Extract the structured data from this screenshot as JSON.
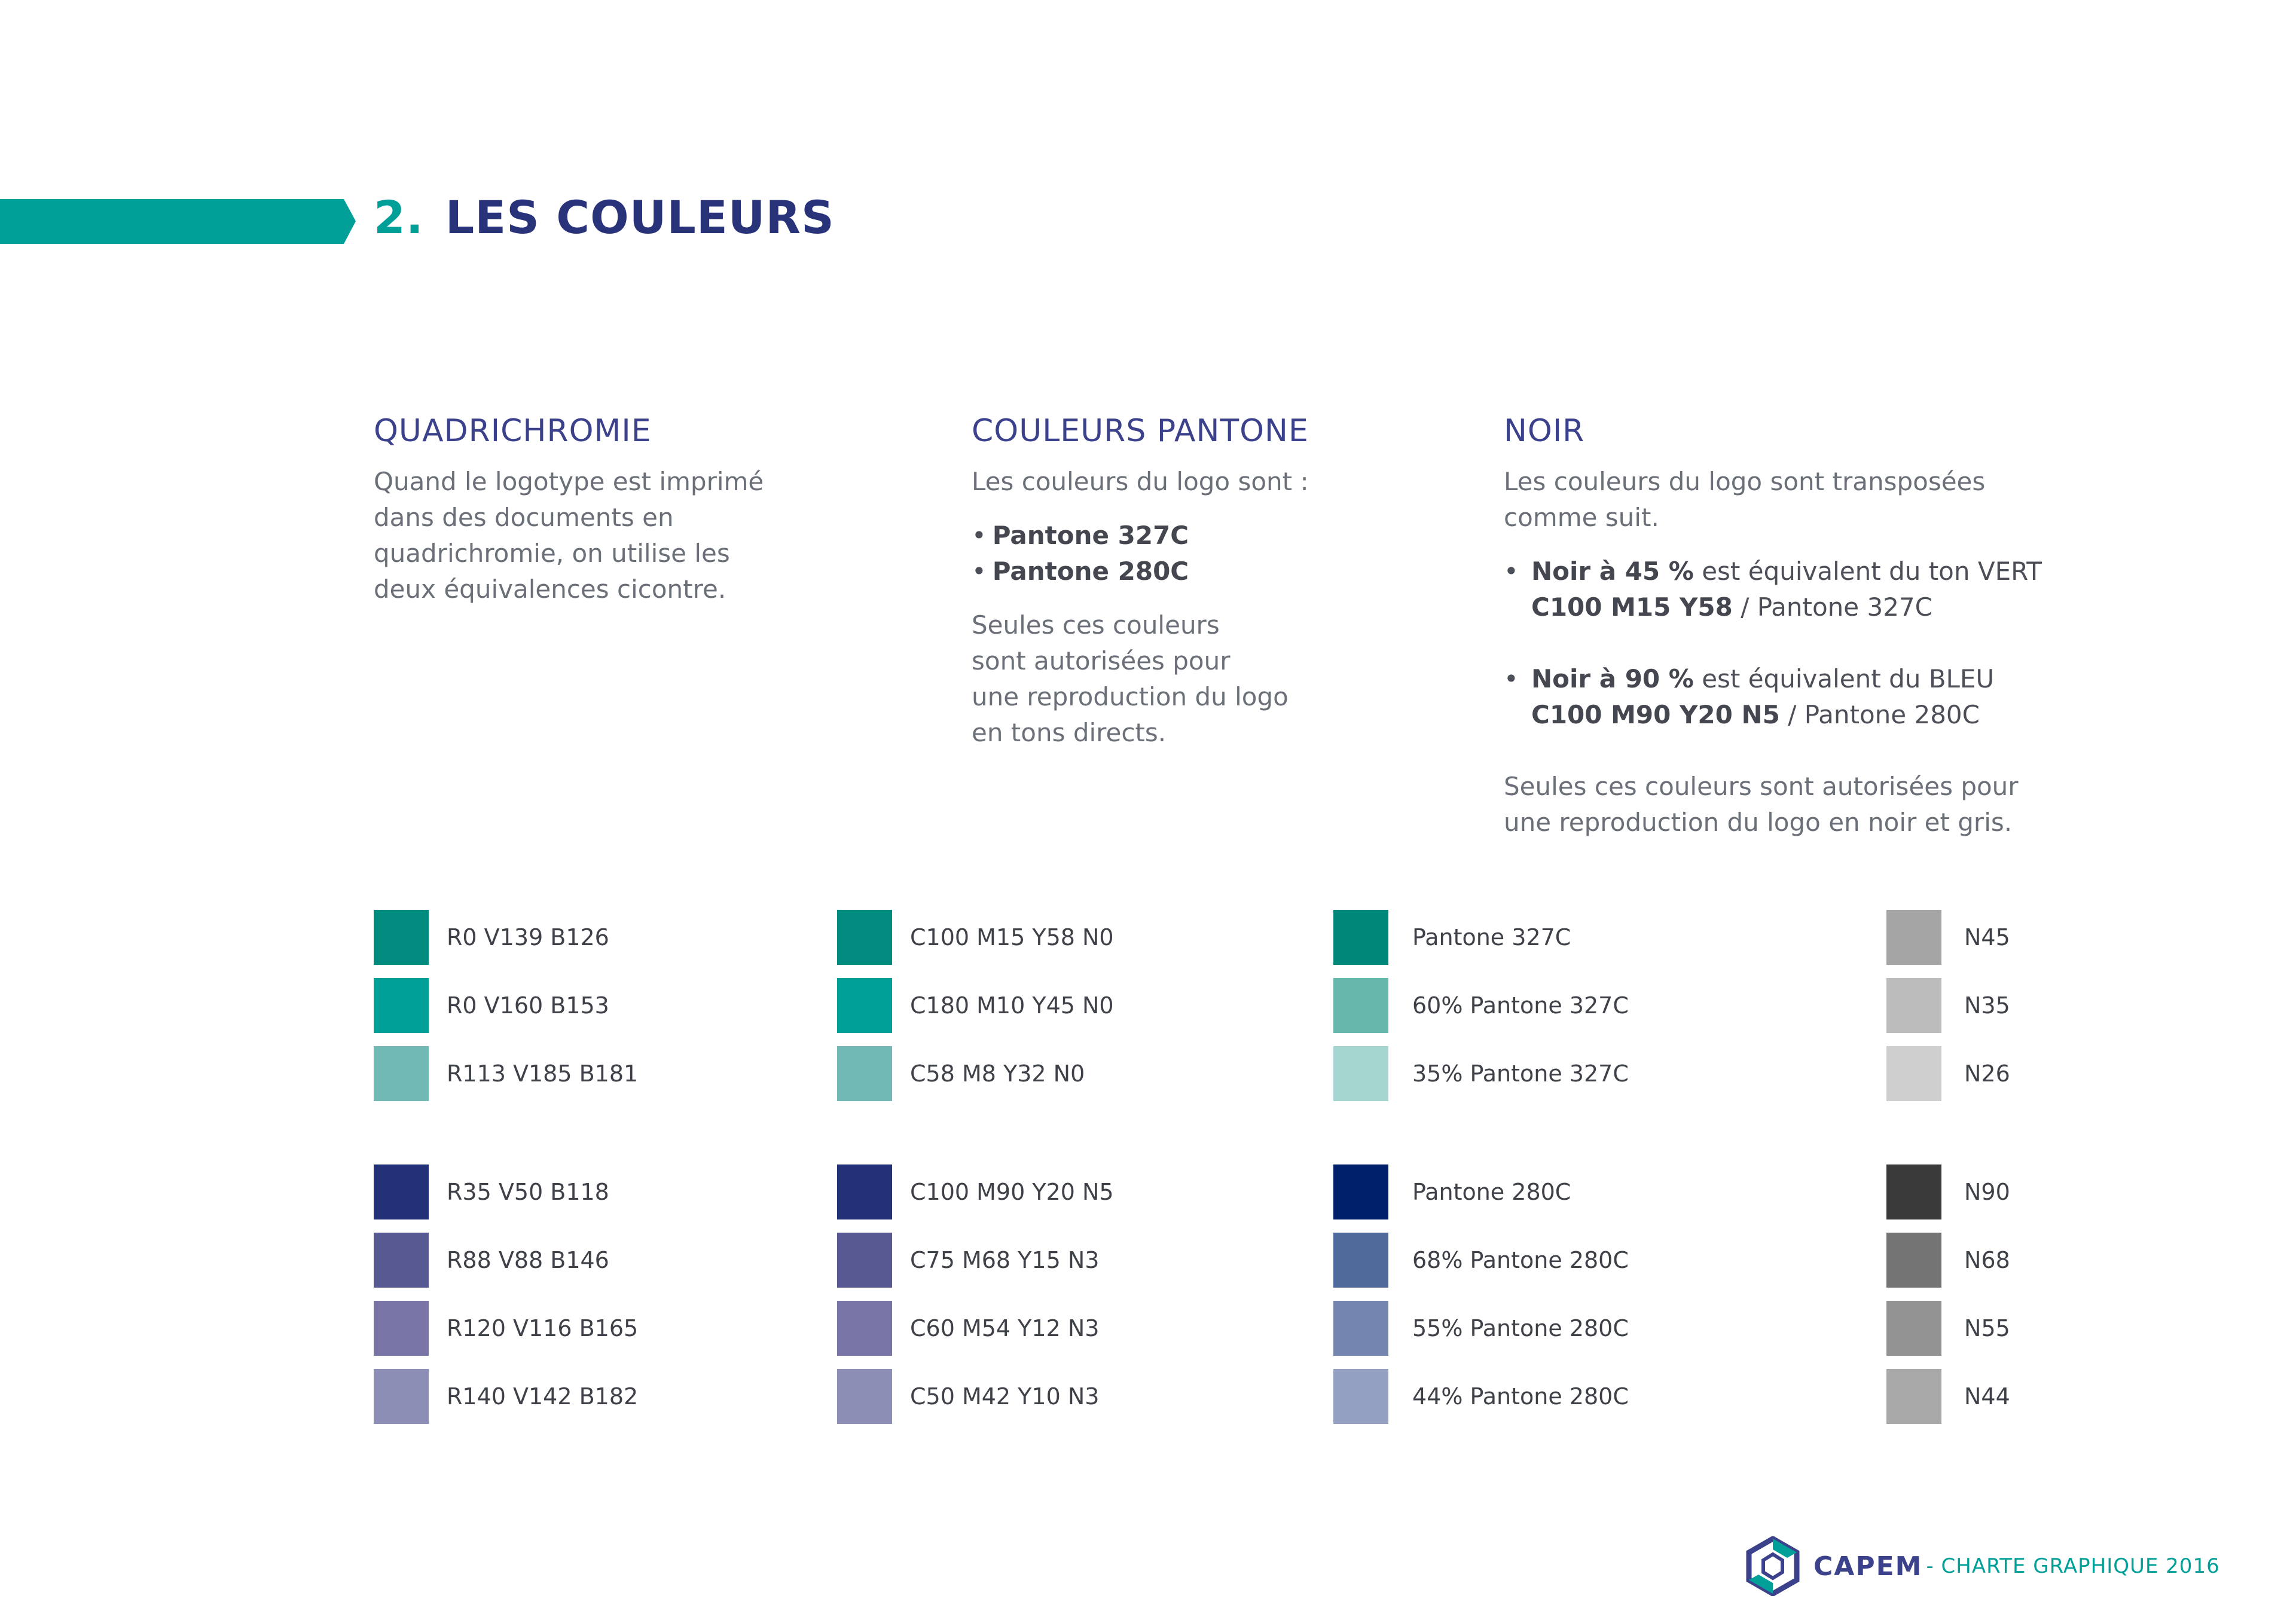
{
  "header": {
    "number": "2.",
    "title": "LES COULEURS"
  },
  "quadrichromie": {
    "title": "QUADRICHROMIE",
    "text": "Quand le logotype est imprimé\ndans des documents en\nquadrichromie, on utilise les\ndeux équivalences cicontre."
  },
  "pantone": {
    "title": "COULEURS PANTONE",
    "intro": "Les couleurs du logo sont :",
    "items": [
      "Pantone 327C",
      "Pantone 280C"
    ],
    "outro": "Seules ces couleurs\nsont autorisées pour\nune reproduction du logo\nen tons directs."
  },
  "noir": {
    "title": "NOIR",
    "intro": "Les couleurs du logo sont transposées\ncomme suit.",
    "items": [
      {
        "bold": "Noir à 45 %",
        "text": " est équivalent du ton VERT",
        "code": "C100 M15 Y58",
        "pantone": " / Pantone 327C"
      },
      {
        "bold": "Noir à 90 %",
        "text": " est équivalent du BLEU",
        "code": "C100 M90 Y20 N5",
        "pantone": " / Pantone 280C"
      }
    ],
    "outro": "Seules ces couleurs sont autorisées pour\nune reproduction du logo en noir et gris."
  },
  "swatch_columns": [
    {
      "name": "rvb",
      "green": [
        {
          "label": "R0 V139 B126",
          "color": "#008b7e"
        },
        {
          "label": "R0 V160 B153",
          "color": "#00a099"
        },
        {
          "label": "R113 V185 B181",
          "color": "#71b9b5"
        }
      ],
      "blue": [
        {
          "label": "R35 V50 B118",
          "color": "#233276"
        },
        {
          "label": "R88 V88 B146",
          "color": "#585892"
        },
        {
          "label": "R120 V116 B165",
          "color": "#7874a5"
        },
        {
          "label": "R140 V142 B182",
          "color": "#8c8eb6"
        }
      ]
    },
    {
      "name": "cmjn",
      "green": [
        {
          "label": "C100 M15 Y58 N0",
          "color": "#008b7e"
        },
        {
          "label": "C180 M10 Y45 N0",
          "color": "#00a099"
        },
        {
          "label": "C58 M8 Y32 N0",
          "color": "#71b9b5"
        }
      ],
      "blue": [
        {
          "label": "C100 M90 Y20 N5",
          "color": "#233276"
        },
        {
          "label": "C75 M68 Y15 N3",
          "color": "#585892"
        },
        {
          "label": "C60 M54 Y12 N3",
          "color": "#7874a5"
        },
        {
          "label": "C50 M42 Y10 N3",
          "color": "#8c8eb6"
        }
      ]
    },
    {
      "name": "pantone",
      "green": [
        {
          "label": "Pantone 327C",
          "color": "#00877a"
        },
        {
          "label": "60% Pantone 327C",
          "color": "#67b7ad"
        },
        {
          "label": "35% Pantone 327C",
          "color": "#a5d6d0"
        }
      ],
      "blue": [
        {
          "label": "Pantone 280C",
          "color": "#00206b"
        },
        {
          "label": "68% Pantone 280C",
          "color": "#516a9c"
        },
        {
          "label": "55% Pantone 280C",
          "color": "#7486b0"
        },
        {
          "label": "44% Pantone 280C",
          "color": "#93a0c2"
        }
      ]
    },
    {
      "name": "noir",
      "green": [
        {
          "label": "N45",
          "color": "#a5a5a5"
        },
        {
          "label": "N35",
          "color": "#bcbcbc"
        },
        {
          "label": "N26",
          "color": "#cfcfcf"
        }
      ],
      "blue": [
        {
          "label": "N90",
          "color": "#3a3a3a"
        },
        {
          "label": "N68",
          "color": "#747474"
        },
        {
          "label": "N55",
          "color": "#939393"
        },
        {
          "label": "N44",
          "color": "#a8a8a8"
        }
      ]
    }
  ],
  "footer": {
    "brand": "CAPEM",
    "subtitle": "- CHARTE GRAPHIQUE 2016"
  },
  "colors": {
    "teal": "#00a099",
    "navy": "#283379",
    "text": "#6b6f78"
  }
}
